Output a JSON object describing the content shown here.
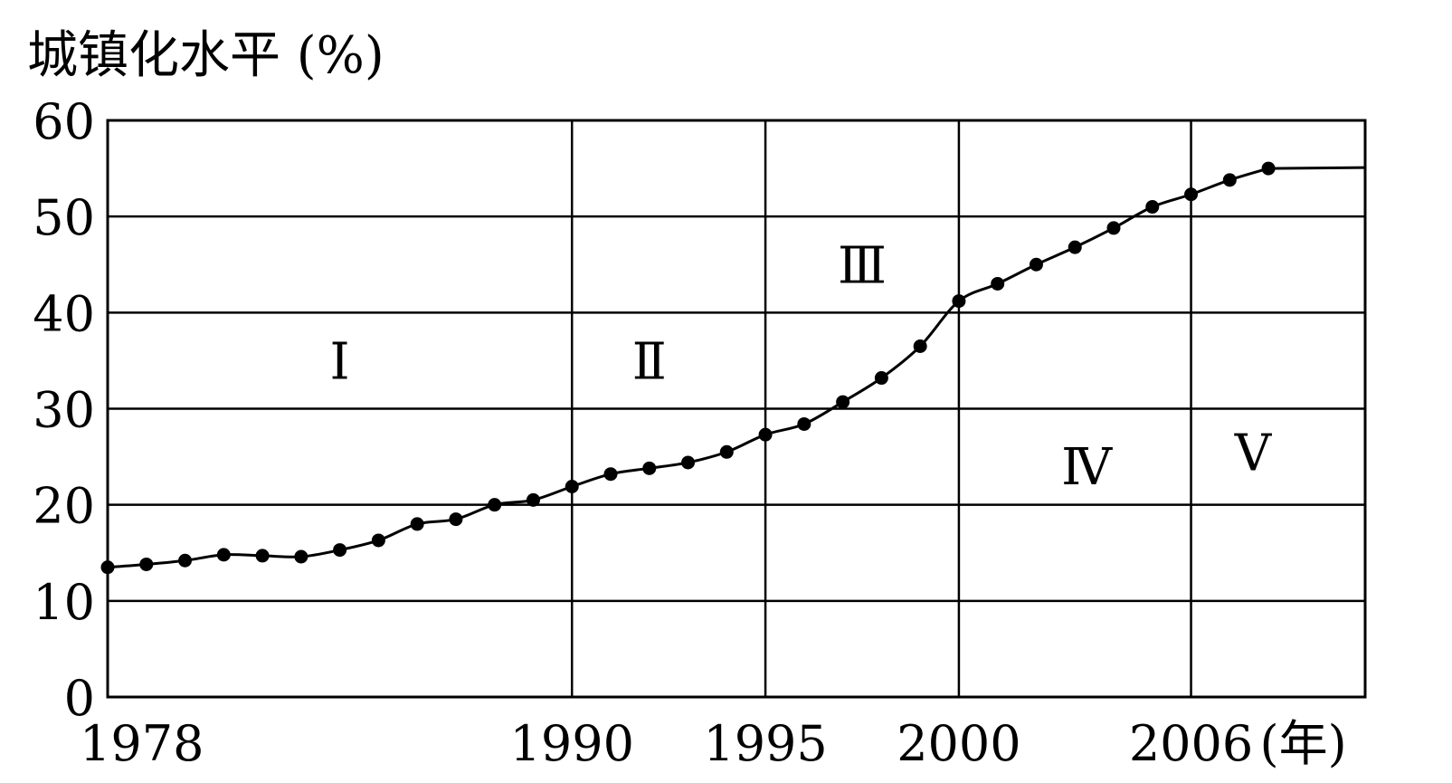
{
  "chart_data": {
    "type": "line",
    "title": "",
    "ylabel": "城镇化水平 (%)",
    "xlabel": "",
    "x_unit_label": "(年)",
    "ylim": [
      0,
      60
    ],
    "xlim": [
      1978,
      2010.5
    ],
    "y_ticks": [
      "0",
      "10",
      "20",
      "30",
      "40",
      "50",
      "60"
    ],
    "x_ticks": [
      "1978",
      "1990",
      "1995",
      "2000",
      "2006"
    ],
    "grid": true,
    "regions": [
      "Ⅰ",
      "Ⅱ",
      "Ⅲ",
      "Ⅳ",
      "Ⅴ"
    ],
    "series": [
      {
        "x": [
          1978,
          1979,
          1980,
          1981,
          1982,
          1983,
          1984,
          1985,
          1986,
          1987,
          1988,
          1989,
          1990,
          1991,
          1992,
          1993,
          1994,
          1995,
          1996,
          1997,
          1998,
          1999,
          2000,
          2001,
          2002,
          2003,
          2004,
          2005,
          2006,
          2007,
          2008
        ],
        "values": [
          13.5,
          13.8,
          14.2,
          14.8,
          14.7,
          14.6,
          15.3,
          16.3,
          18.0,
          18.5,
          20.0,
          20.5,
          21.9,
          23.2,
          23.8,
          24.4,
          25.5,
          27.3,
          28.4,
          30.7,
          33.2,
          36.5,
          41.2,
          43.0,
          45.0,
          46.8,
          48.8,
          51.0,
          52.3,
          53.8,
          55.0
        ]
      }
    ]
  }
}
